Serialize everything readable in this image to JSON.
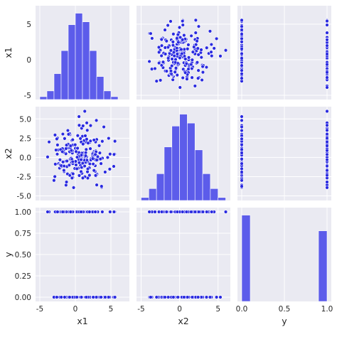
{
  "chart_data": {
    "type": "pairplot",
    "variables": [
      "x1",
      "x2",
      "y"
    ],
    "ticks": {
      "x1": {
        "values": [
          -5,
          0,
          5
        ],
        "labels": [
          "-5",
          "0",
          "5"
        ]
      },
      "x2": {
        "values": [
          -5.0,
          -2.5,
          0.0,
          2.5,
          5.0
        ],
        "labels": [
          "-5.0",
          "-2.5",
          "0.0",
          "2.5",
          "5.0"
        ]
      },
      "y": {
        "values": [
          0.0,
          0.25,
          0.5,
          0.75,
          1.0
        ],
        "labels": [
          "0.00",
          "0.25",
          "0.50",
          "0.75",
          "1.00"
        ]
      }
    },
    "bottom_ticks": {
      "x1": {
        "values": [
          -5,
          0,
          5
        ],
        "labels": [
          "-5",
          "0",
          "5"
        ]
      },
      "x2": {
        "values": [
          -5,
          0,
          5
        ],
        "labels": [
          "-5",
          "0",
          "5"
        ]
      },
      "y": {
        "values": [
          0.0,
          0.5,
          1.0
        ],
        "labels": [
          "0.0",
          "0.5",
          "1.0"
        ]
      }
    },
    "ranges": {
      "x1": [
        -5.6,
        7.6
      ],
      "x2": [
        -5.6,
        6.6
      ],
      "y": [
        -0.05,
        1.05
      ]
    },
    "histograms": {
      "x1": {
        "edges": [
          -5,
          -4,
          -3,
          -2,
          -1,
          0,
          1,
          2,
          3,
          4,
          5,
          6
        ],
        "counts": [
          1,
          3,
          9,
          17,
          26,
          30,
          27,
          17,
          8,
          3,
          1
        ]
      },
      "x2": {
        "edges": [
          -5,
          -4,
          -3,
          -2,
          -1,
          0,
          1,
          2,
          3,
          4,
          5,
          6
        ],
        "counts": [
          1,
          4,
          9,
          18,
          25,
          29,
          26,
          17,
          9,
          4,
          1
        ]
      },
      "y": {
        "edges": [
          0.0,
          0.1,
          0.9,
          1.0
        ],
        "counts": [
          55,
          0,
          45
        ]
      }
    },
    "sample_size": 200,
    "grid": true
  }
}
